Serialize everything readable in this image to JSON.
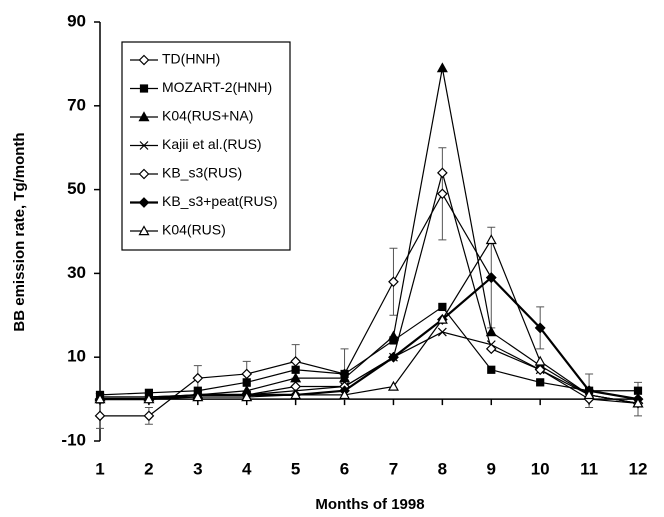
{
  "chart_data": {
    "type": "line",
    "x_label": "Months of 1998",
    "y_label": "BB emission rate, Tg/month",
    "x": [
      1,
      2,
      3,
      4,
      5,
      6,
      7,
      8,
      9,
      10,
      11,
      12
    ],
    "xlim": [
      1,
      12
    ],
    "xticks": [
      1,
      2,
      3,
      4,
      5,
      6,
      7,
      8,
      9,
      10,
      11,
      12
    ],
    "ylim": [
      -10,
      90
    ],
    "yticks": [
      -10,
      10,
      30,
      50,
      70,
      90
    ],
    "legend": "upper left",
    "series": [
      {
        "name": "TD(HNH)",
        "color": "#000000",
        "marker": "open-diamond",
        "width": 1.2,
        "values": [
          -4,
          -4,
          5,
          6,
          9,
          6,
          28,
          49,
          29,
          17,
          2,
          0
        ],
        "errors": [
          3,
          2,
          3,
          3,
          4,
          6,
          8,
          11,
          12,
          5,
          4,
          4
        ]
      },
      {
        "name": "MOZART-2(HNH)",
        "color": "#000000",
        "marker": "square",
        "width": 1.2,
        "values": [
          1,
          1.5,
          2,
          4,
          7,
          6,
          14,
          22,
          7,
          4,
          2,
          2
        ]
      },
      {
        "name": "K04(RUS+NA)",
        "color": "#000000",
        "marker": "triangle",
        "width": 1.2,
        "values": [
          0.5,
          0.5,
          1,
          2,
          5,
          5,
          15,
          79,
          16,
          8,
          1,
          -1
        ]
      },
      {
        "name": "Kajii et al.(RUS)",
        "color": "#000000",
        "marker": "cross",
        "width": 1.2,
        "values": [
          0.5,
          0.5,
          1,
          1,
          2,
          3,
          10,
          16,
          13,
          7,
          1,
          -1
        ]
      },
      {
        "name": "KB_s3(RUS)",
        "color": "#000000",
        "marker": "open-diamond",
        "width": 1.2,
        "values": [
          0,
          0,
          1,
          1,
          3,
          3,
          10,
          54,
          12,
          7,
          0,
          -1
        ]
      },
      {
        "name": "KB_s3+peat(RUS)",
        "color": "#000000",
        "marker": "diamond",
        "width": 2.2,
        "values": [
          0,
          0,
          1,
          1,
          1,
          2,
          10,
          19,
          29,
          17,
          2,
          0
        ]
      },
      {
        "name": "K04(RUS)",
        "color": "#000000",
        "marker": "open-triangle",
        "width": 1.2,
        "values": [
          0,
          0,
          0.5,
          0.5,
          1,
          1,
          3,
          19,
          38,
          9,
          1,
          -1
        ]
      }
    ]
  }
}
